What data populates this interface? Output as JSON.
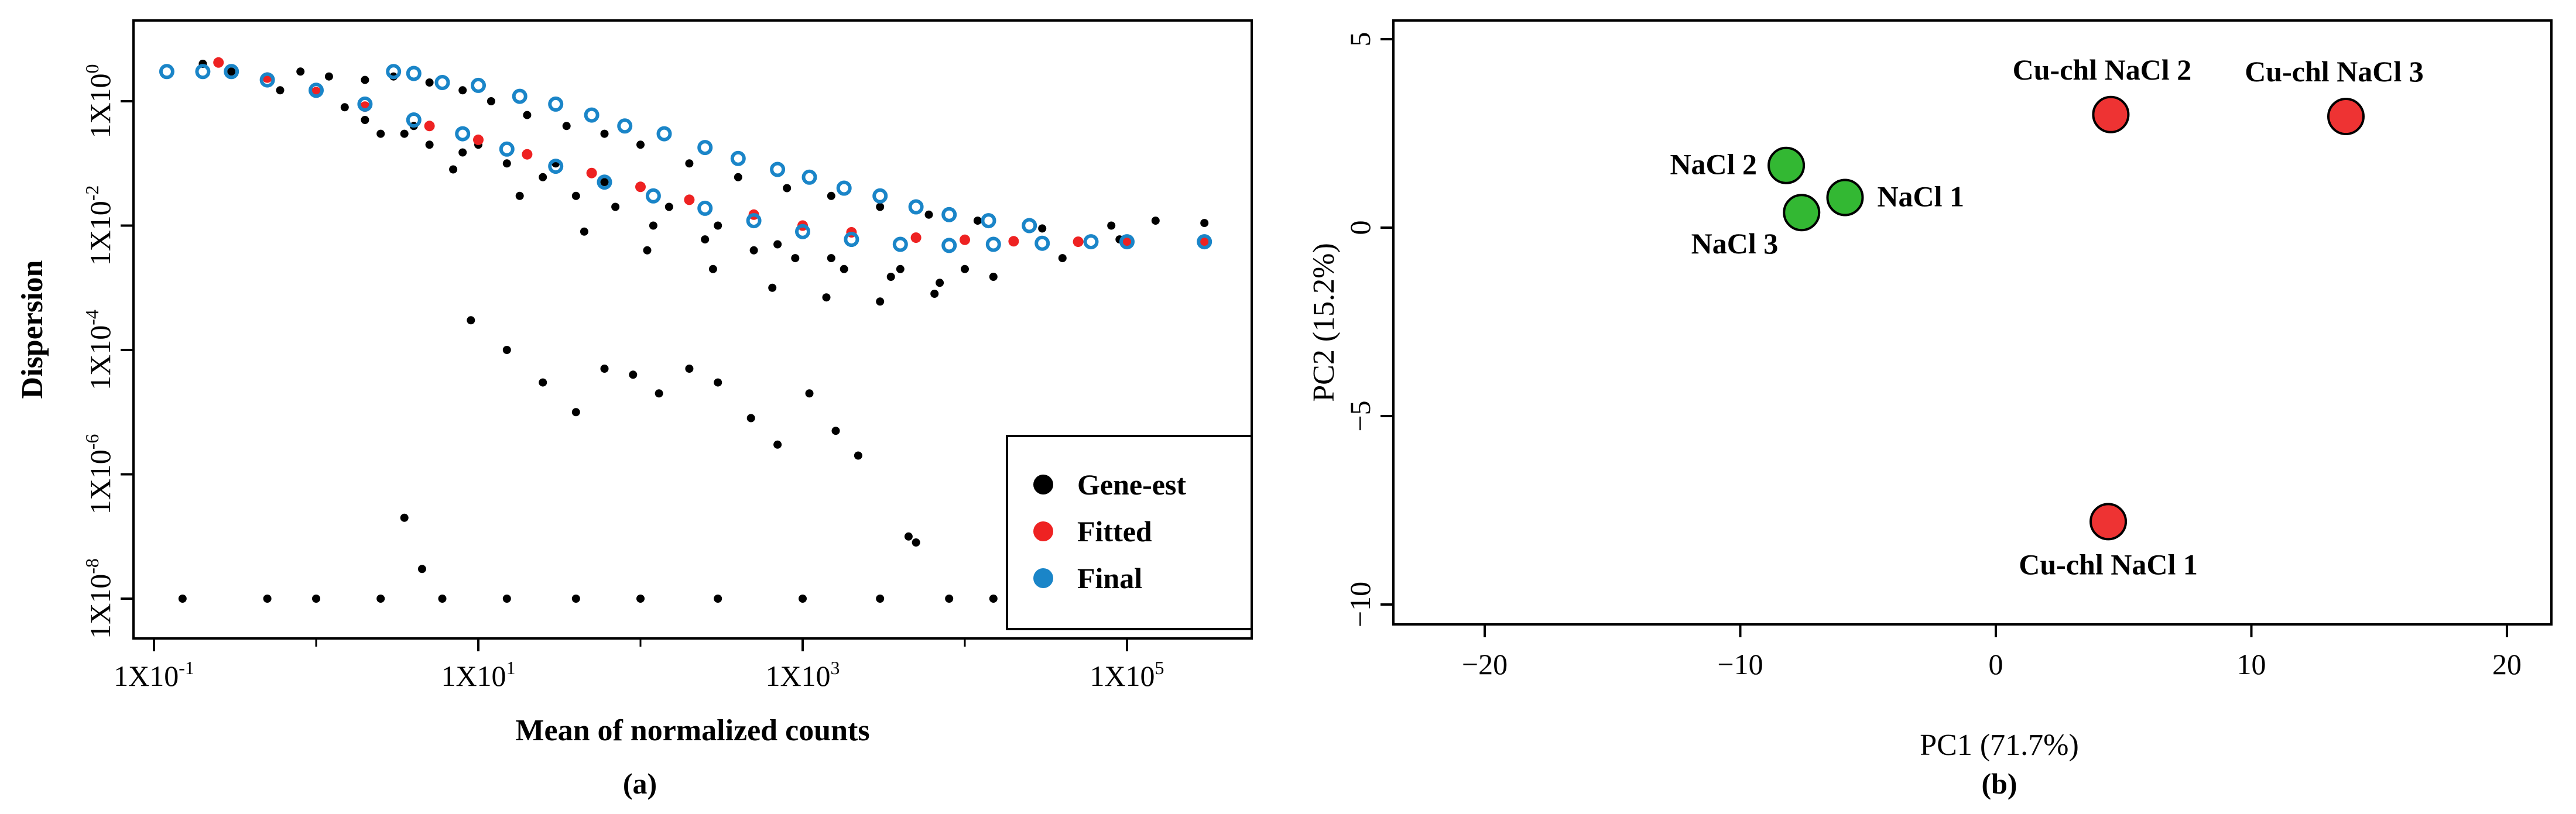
{
  "chart_data": [
    {
      "type": "scatter",
      "panel_label": "(a)",
      "xlabel": "Mean of normalized counts",
      "ylabel": "Dispersion",
      "x_scale": "log10",
      "y_scale": "log10",
      "xlim": [
        0.08,
        2000000
      ],
      "ylim": [
        1e-08,
        10
      ],
      "x_ticks": [
        {
          "value": 0.1,
          "base": "1X10",
          "exp": "-1"
        },
        {
          "value": 10,
          "base": "1X10",
          "exp": "1"
        },
        {
          "value": 1000,
          "base": "1X10",
          "exp": "3"
        },
        {
          "value": 100000,
          "base": "1X10",
          "exp": "5"
        }
      ],
      "y_ticks": [
        {
          "value": 1,
          "base": "1X10",
          "exp": "0"
        },
        {
          "value": 0.01,
          "base": "1X10",
          "exp": "-2"
        },
        {
          "value": 0.0001,
          "base": "1X10",
          "exp": "-4"
        },
        {
          "value": 1e-06,
          "base": "1X10",
          "exp": "-6"
        },
        {
          "value": 1e-08,
          "base": "1X10",
          "exp": "-8"
        }
      ],
      "legend": {
        "position": "bottom-right",
        "entries": [
          {
            "label": "Gene-est",
            "color": "#000000"
          },
          {
            "label": "Fitted",
            "color": "#ee2222"
          },
          {
            "label": "Final",
            "color": "#1a85c8"
          }
        ]
      },
      "series": [
        {
          "name": "Gene-est",
          "color": "#000000",
          "x": [
            0.2,
            0.3,
            0.5,
            0.8,
            1.2,
            2,
            3,
            5,
            8,
            12,
            20,
            35,
            60,
            100,
            200,
            400,
            800,
            1500,
            3000,
            6000,
            12000,
            30000,
            80000,
            150000,
            300000,
            2,
            3.5,
            5,
            8,
            15,
            25,
            40,
            70,
            120,
            250,
            500,
            900,
            1800,
            3500,
            7000,
            15000,
            40000,
            90000,
            0.6,
            1.5,
            4,
            10,
            30,
            60,
            150,
            300,
            700,
            1500,
            4000,
            10000,
            2.5,
            7,
            18,
            45,
            110,
            280,
            650,
            1400,
            3000,
            6500,
            0.15,
            0.5,
            1,
            2.5,
            6,
            15,
            40,
            100,
            300,
            1000,
            3000,
            8000,
            15000,
            3.5,
            4.5,
            9,
            15,
            25,
            40,
            60,
            90,
            130,
            200,
            300,
            480,
            700,
            1100,
            1600,
            2200,
            4500,
            5000
          ],
          "y": [
            4,
            3,
            2.5,
            3,
            2.5,
            2.2,
            2.5,
            2,
            1.5,
            1,
            0.6,
            0.4,
            0.3,
            0.2,
            0.1,
            0.06,
            0.04,
            0.03,
            0.02,
            0.015,
            0.012,
            0.009,
            0.01,
            0.012,
            0.011,
            0.5,
            0.3,
            0.2,
            0.15,
            0.1,
            0.06,
            0.03,
            0.02,
            0.01,
            0.006,
            0.004,
            0.003,
            0.002,
            0.0015,
            0.0012,
            0.0015,
            0.003,
            0.006,
            1.5,
            0.8,
            0.4,
            0.2,
            0.1,
            0.05,
            0.02,
            0.01,
            0.005,
            0.003,
            0.002,
            0.002,
            0.3,
            0.08,
            0.03,
            0.008,
            0.004,
            0.002,
            0.001,
            0.0007,
            0.0006,
            0.0008,
            1e-08,
            1e-08,
            1e-08,
            1e-08,
            1e-08,
            1e-08,
            1e-08,
            1e-08,
            1e-08,
            1e-08,
            1e-08,
            1e-08,
            1e-08,
            2e-07,
            3e-08,
            0.0003,
            0.0001,
            3e-05,
            1e-05,
            5e-05,
            4e-05,
            2e-05,
            5e-05,
            3e-05,
            8e-06,
            3e-06,
            2e-05,
            5e-06,
            2e-06,
            1e-07,
            8e-08
          ]
        },
        {
          "name": "Fitted",
          "color": "#ee2222",
          "x": [
            0.25,
            0.5,
            1,
            2,
            5,
            10,
            20,
            50,
            100,
            200,
            500,
            1000,
            2000,
            5000,
            10000,
            20000,
            50000,
            100000,
            300000
          ],
          "y": [
            4.2,
            2.4,
            1.4,
            0.82,
            0.4,
            0.24,
            0.14,
            0.07,
            0.042,
            0.026,
            0.015,
            0.01,
            0.0078,
            0.0064,
            0.0059,
            0.0056,
            0.0055,
            0.0055,
            0.0055
          ]
        },
        {
          "name": "Final",
          "color": "#1a85c8",
          "x": [
            0.12,
            0.2,
            0.3,
            0.5,
            1,
            2,
            4,
            8,
            15,
            30,
            60,
            120,
            250,
            500,
            1000,
            2000,
            4000,
            8000,
            15000,
            30000,
            60000,
            100000,
            300000,
            3,
            4,
            6,
            10,
            18,
            30,
            50,
            80,
            140,
            250,
            400,
            700,
            1100,
            1800,
            3000,
            5000,
            8000,
            14000,
            25000
          ],
          "y": [
            3,
            3,
            3,
            2.2,
            1.5,
            0.9,
            0.5,
            0.3,
            0.17,
            0.09,
            0.05,
            0.03,
            0.019,
            0.012,
            0.008,
            0.006,
            0.005,
            0.0048,
            0.005,
            0.0052,
            0.0055,
            0.0055,
            0.0055,
            3,
            2.8,
            2,
            1.8,
            1.2,
            0.9,
            0.6,
            0.4,
            0.3,
            0.18,
            0.12,
            0.08,
            0.06,
            0.04,
            0.03,
            0.02,
            0.015,
            0.012,
            0.01
          ]
        }
      ]
    },
    {
      "type": "scatter",
      "panel_label": "(b)",
      "xlabel": "PC1 (71.7%)",
      "ylabel": "PC2 (15.2%)",
      "xlim": [
        -22,
        22
      ],
      "ylim": [
        -10.6,
        5.4
      ],
      "x_ticks": [
        "−20",
        "−10",
        "0",
        "10",
        "20"
      ],
      "x_tick_values": [
        -20,
        -10,
        0,
        10,
        20
      ],
      "y_ticks": [
        "5",
        "0",
        "−5",
        "−10"
      ],
      "y_tick_values": [
        5,
        0,
        -5,
        -10
      ],
      "points": [
        {
          "label": "NaCl 1",
          "x": -5.9,
          "y": 0.8,
          "color": "#33b833"
        },
        {
          "label": "NaCl 2",
          "x": -8.2,
          "y": 1.65,
          "color": "#33b833"
        },
        {
          "label": "NaCl 3",
          "x": -7.6,
          "y": 0.4,
          "color": "#33b833"
        },
        {
          "label": "Cu-chl NaCl 1",
          "x": 4.4,
          "y": -7.8,
          "color": "#ee3333"
        },
        {
          "label": "Cu-chl NaCl 2",
          "x": 4.5,
          "y": 3.0,
          "color": "#ee3333"
        },
        {
          "label": "Cu-chl NaCl 3",
          "x": 13.7,
          "y": 2.95,
          "color": "#ee3333"
        }
      ]
    }
  ]
}
